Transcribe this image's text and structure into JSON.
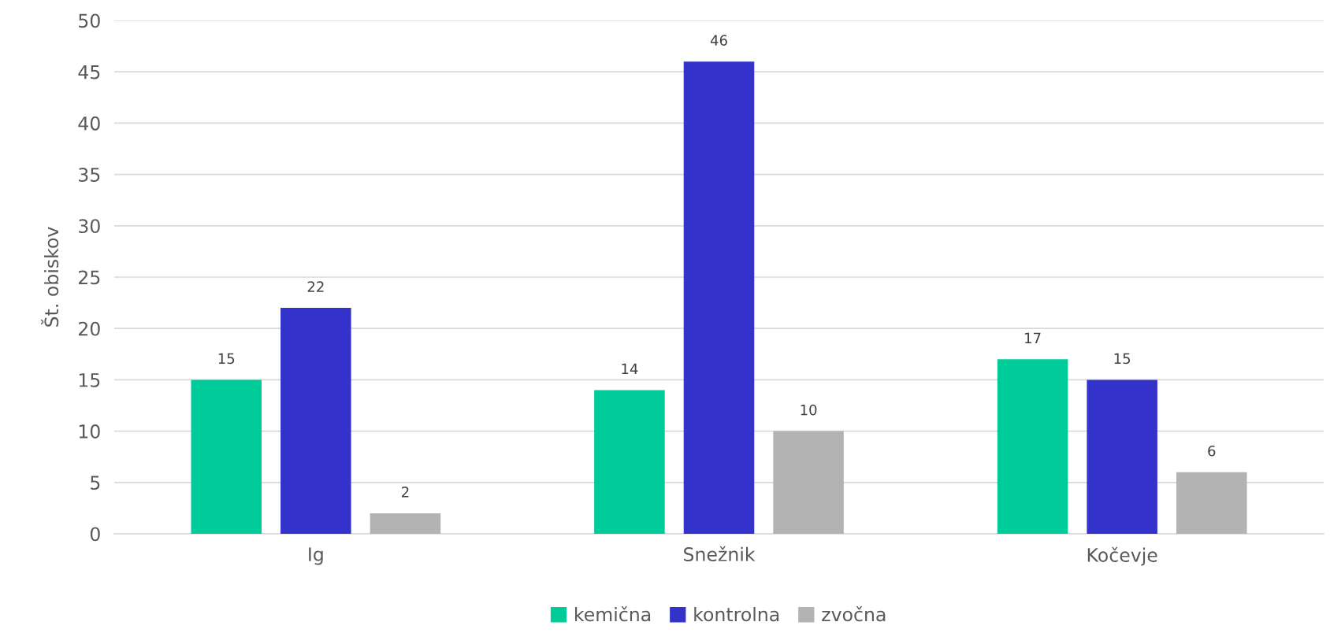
{
  "chart_data": {
    "type": "bar",
    "ylabel": "Št. obiskov",
    "categories": [
      "Ig",
      "Snežnik",
      "Kočevje"
    ],
    "series": [
      {
        "name": "kemična",
        "color": "#00cc99",
        "values": [
          15,
          14,
          17
        ]
      },
      {
        "name": "kontrolna",
        "color": "#3333cc",
        "values": [
          22,
          46,
          15
        ]
      },
      {
        "name": "zvočna",
        "color": "#b3b3b3",
        "values": [
          2,
          10,
          6
        ]
      }
    ],
    "ylim": [
      0,
      50
    ],
    "yticks": [
      0,
      5,
      10,
      15,
      20,
      25,
      30,
      35,
      40,
      45,
      50
    ],
    "grid": "y",
    "legend": "bottom",
    "data_labels": true
  }
}
